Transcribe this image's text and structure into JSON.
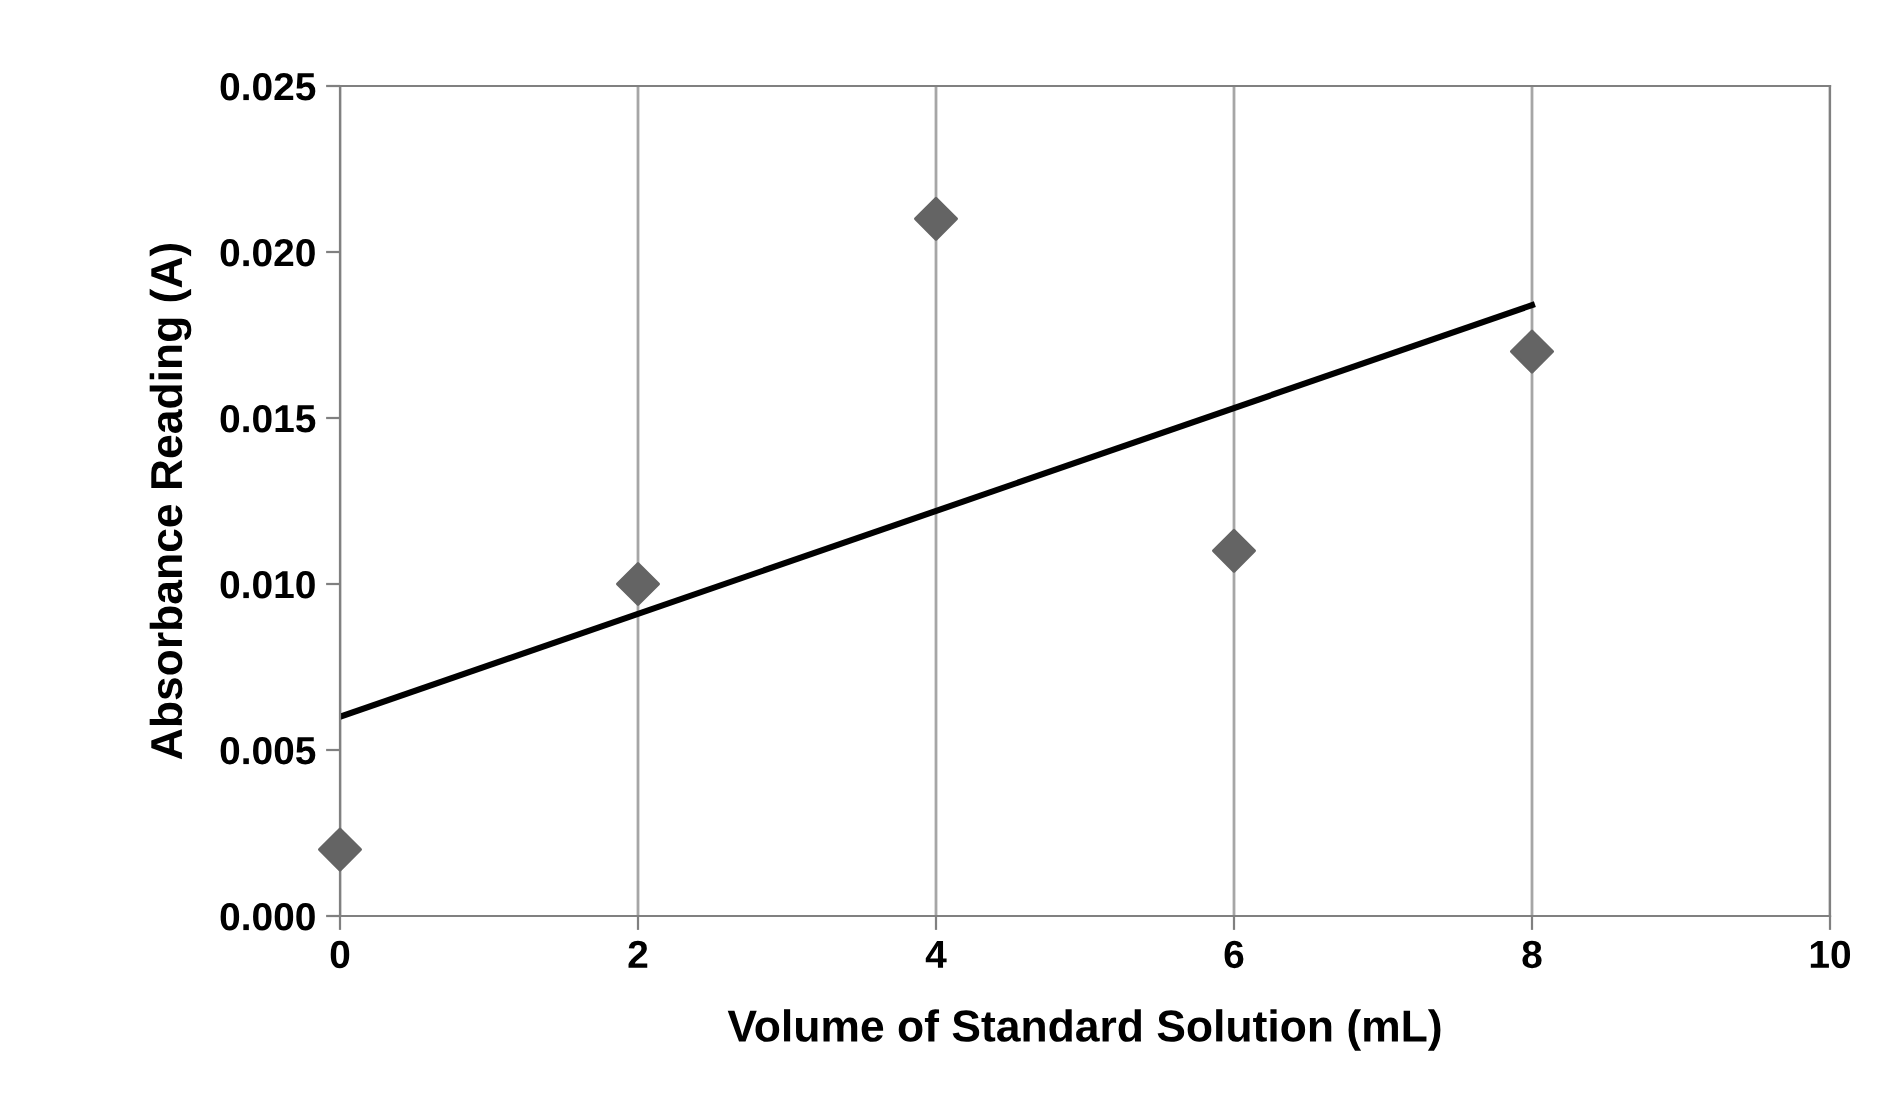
{
  "chart_data": {
    "type": "scatter",
    "xlabel": "Volume of Standard Solution (mL)",
    "ylabel": "Absorbance Reading (A)",
    "series": [
      {
        "color": "#646464",
        "marker": "diamond",
        "x": [
          0,
          2,
          4,
          6,
          8
        ],
        "values": [
          0.002,
          0.01,
          0.021,
          0.011,
          0.017
        ]
      },
      {
        "type": "line",
        "color": "#000000",
        "marker": "none",
        "line_style": "solid",
        "x": [
          0,
          8
        ],
        "values": [
          0.006,
          0.0184
        ]
      }
    ],
    "xlim": [
      0,
      10
    ],
    "xticks": [
      0,
      2,
      4,
      6,
      8,
      10
    ],
    "ylim": [
      0,
      0.025
    ],
    "yticks": [
      {
        "value": 0,
        "label": "0.000"
      },
      {
        "value": 0.005,
        "label": "0.005"
      },
      {
        "value": 0.01,
        "label": "0.010"
      },
      {
        "value": 0.015,
        "label": "0.015"
      },
      {
        "value": 0.02,
        "label": "0.020"
      },
      {
        "value": 0.025,
        "label": "0.025"
      }
    ],
    "grid": "x",
    "legend": false
  }
}
